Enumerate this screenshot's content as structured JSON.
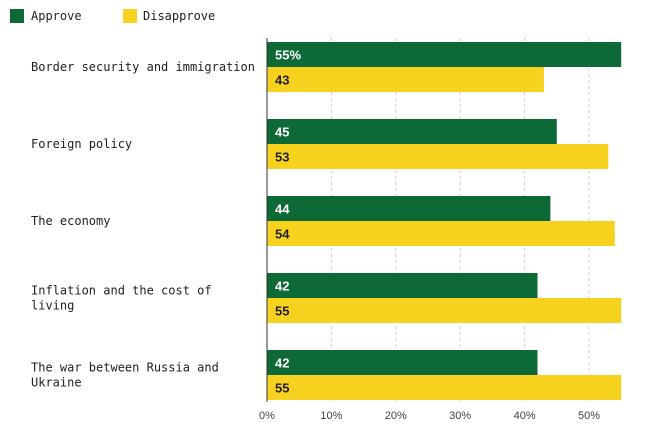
{
  "legend": {
    "approve_label": "Approve",
    "disapprove_label": "Disapprove"
  },
  "colors": {
    "approve": "#0d6a37",
    "disapprove": "#f6d21f",
    "approve_text": "#ffffff",
    "disapprove_text": "#222222"
  },
  "chart_data": {
    "type": "bar",
    "orientation": "horizontal",
    "categories": [
      [
        "Border security and immigration"
      ],
      [
        "Foreign policy"
      ],
      [
        "The economy"
      ],
      [
        "Inflation and the cost of",
        "living"
      ],
      [
        "The war between Russia and",
        "Ukraine"
      ]
    ],
    "series": [
      {
        "name": "Approve",
        "values": [
          55,
          45,
          44,
          42,
          42
        ],
        "labels": [
          "55%",
          "45",
          "44",
          "42",
          "42"
        ]
      },
      {
        "name": "Disapprove",
        "values": [
          43,
          53,
          54,
          55,
          55
        ],
        "labels": [
          "43",
          "53",
          "54",
          "55",
          "55"
        ]
      }
    ],
    "xlim": [
      0,
      55
    ],
    "ticks": [
      0,
      10,
      20,
      30,
      40,
      50
    ],
    "tick_labels": [
      "0%",
      "10%",
      "20%",
      "30%",
      "40%",
      "50%"
    ],
    "grid": true,
    "legend_position": "top-left"
  }
}
